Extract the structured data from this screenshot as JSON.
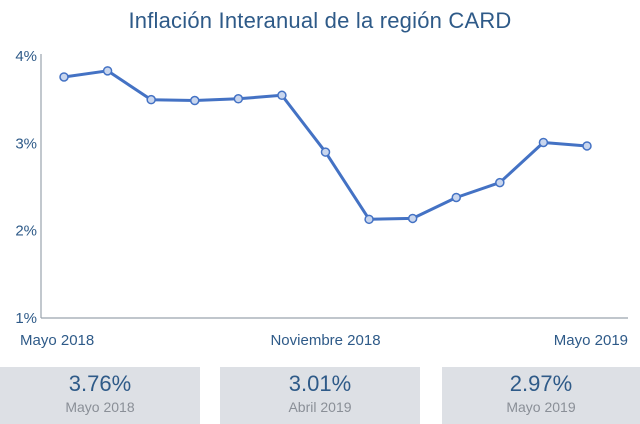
{
  "chart_data": {
    "type": "line",
    "title": "Inflación Interanual de la región CARD",
    "x": [
      "2018-05",
      "2018-06",
      "2018-07",
      "2018-08",
      "2018-09",
      "2018-10",
      "2018-11",
      "2018-12",
      "2019-01",
      "2019-02",
      "2019-03",
      "2019-04",
      "2019-05"
    ],
    "x_tick_labels": [
      {
        "index": 0,
        "label": "Mayo 2018"
      },
      {
        "index": 6,
        "label": "Noviembre 2018"
      },
      {
        "index": 12,
        "label": "Mayo 2019"
      }
    ],
    "series": [
      {
        "values": [
          3.76,
          3.83,
          3.5,
          3.49,
          3.51,
          3.55,
          2.9,
          2.13,
          2.14,
          2.38,
          2.55,
          3.01,
          2.97
        ]
      }
    ],
    "ylim": [
      1,
      4
    ],
    "y_ticks": [
      "1%",
      "2%",
      "3%",
      "4%"
    ],
    "y_tick_values": [
      1,
      2,
      3,
      4
    ],
    "grid": false,
    "line_color": "#4472c4",
    "marker_fill": "#c9d6ee"
  },
  "cards": [
    {
      "value": "3.76%",
      "label": "Mayo 2018"
    },
    {
      "value": "3.01%",
      "label": "Abril 2019"
    },
    {
      "value": "2.97%",
      "label": "Mayo 2019"
    }
  ]
}
